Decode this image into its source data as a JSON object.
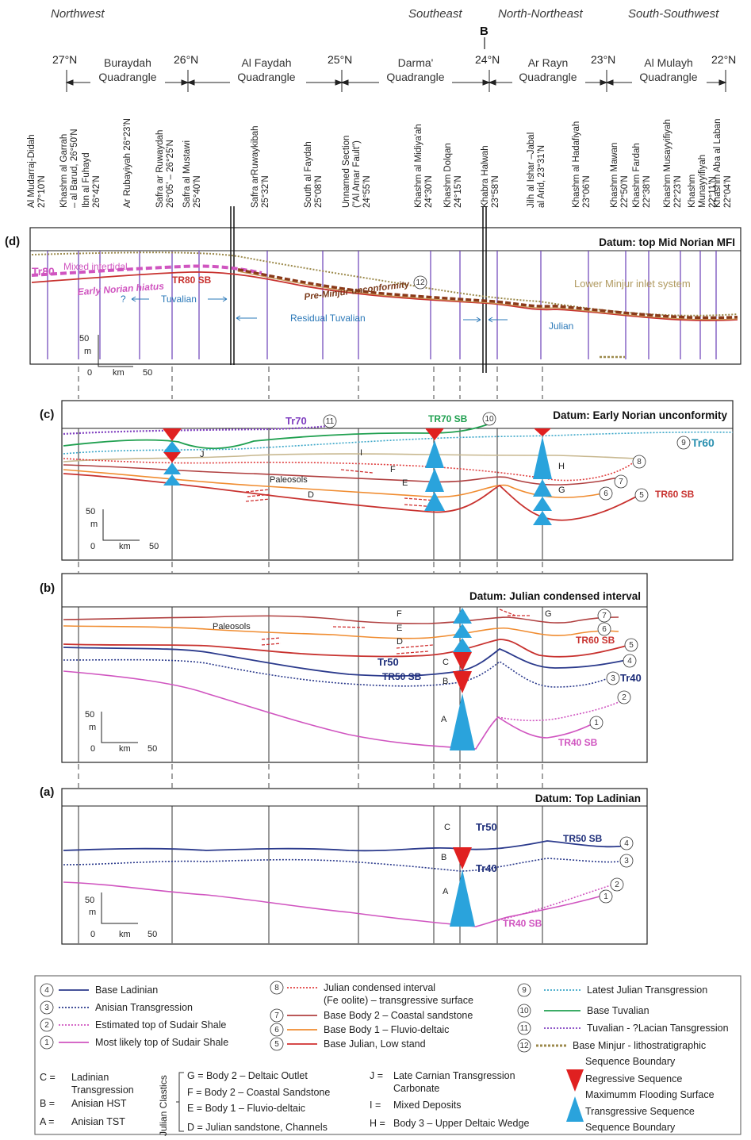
{
  "regions": [
    "Northwest",
    "Southeast",
    "North-Northeast",
    "South-Southwest"
  ],
  "section_mark": "B",
  "latitudes": [
    "27°N",
    "26°N",
    "25°N",
    "24°N",
    "23°N",
    "22°N"
  ],
  "quadrangles": [
    {
      "l1": "Buraydah",
      "l2": "Quadrangle"
    },
    {
      "l1": "Al Faydah",
      "l2": "Quadrangle"
    },
    {
      "l1": "Darma'",
      "l2": "Quadrangle"
    },
    {
      "l1": "Ar Rayn",
      "l2": "Quadrangle"
    },
    {
      "l1": "Al Mulayh",
      "l2": "Quadrangle"
    }
  ],
  "localities": [
    {
      "l1": "Al Mudarraj-Didah",
      "l2": "27°10'N"
    },
    {
      "l1": "Khashm al Garrah",
      "l2": "– al Barud, 26°50'N"
    },
    {
      "l1": "Ibn al Fuhayd",
      "l2": "26°42'N"
    },
    {
      "l1": "Ar Rubayiyah 26°23'N",
      "l2": ""
    },
    {
      "l1": "Safra ar Ruwaydah",
      "l2": "26°05' – 26°25'N"
    },
    {
      "l1": "Safra al Mustawi",
      "l2": "25°40'N"
    },
    {
      "l1": "Safra arRuwaykibah",
      "l2": "25°32'N"
    },
    {
      "l1": "South al Faydah",
      "l2": "25°08'N"
    },
    {
      "l1": "Unnamed Section",
      "l2": "(\"Al Amar Fault\")",
      "l3": "24°55'N"
    },
    {
      "l1": "Khashm al Midiya'ah",
      "l2": "24°30'N"
    },
    {
      "l1": "Khashm Dolqan",
      "l2": "24°15'N"
    },
    {
      "l1": "Khabra Halwah",
      "l2": "23°58'N"
    },
    {
      "l1": "Jilh al Ishar –Jabal",
      "l2": "al Arid, 23°31'N"
    },
    {
      "l1": "Khashm al Hadafiyah",
      "l2": "23°06'N"
    },
    {
      "l1": "Khashm Mawan",
      "l2": "22°50'N"
    },
    {
      "l1": "Khashm Fardah",
      "l2": "22°38'N"
    },
    {
      "l1": "Khashm Musayyifiyah",
      "l2": "22°23'N"
    },
    {
      "l1": "Khashm",
      "l2": "Munayyifiyah",
      "l3": "22°11'N"
    },
    {
      "l1": "Khashm Aba al Laban",
      "l2": "22°04'N"
    }
  ],
  "panel_d": {
    "label": "(d)",
    "datum": "Datum: top Mid Norian MFI",
    "tr80": "Tr80",
    "mixed": "Mixed intertidal",
    "hiatus": "Early Norian hiatus",
    "tr80sb": "TR80 SB",
    "q": "?",
    "tuvalian": "Tuvalian",
    "preminjur": "Pre-Minjur unconformity",
    "circ12": "12",
    "lower_minjur": "Lower Minjur inlet system",
    "residual": "Residual Tuvalian",
    "julian": "Julian",
    "scale_v": "50",
    "scale_m": "m",
    "scale_0": "0",
    "scale_km": "km",
    "scale_50": "50"
  },
  "panel_c": {
    "label": "(c)",
    "datum": "Datum: Early Norian unconformity",
    "tr70": "Tr70",
    "c11": "11",
    "tr70sb": "TR70 SB",
    "c10": "10",
    "c9": "9",
    "tr60": "Tr60",
    "J": "J",
    "I": "I",
    "F": "F",
    "E": "E",
    "D": "D",
    "H": "H",
    "G": "G",
    "paleosols": "Paleosols",
    "c8": "8",
    "c7": "7",
    "c6": "6",
    "c5": "5",
    "tr60sb": "TR60 SB"
  },
  "panel_b": {
    "label": "(b)",
    "datum": "Datum: Julian condensed interval",
    "F": "F",
    "E": "E",
    "D": "D",
    "G": "G",
    "C": "C",
    "B": "B",
    "A": "A",
    "paleosols": "Paleosols",
    "c7": "7",
    "c6": "6",
    "c5": "5",
    "c4": "4",
    "c3": "3",
    "c2": "2",
    "c1": "1",
    "tr60sb": "TR60 SB",
    "tr50": "Tr50",
    "tr50sb": "TR50 SB",
    "tr40": "Tr40",
    "tr40sb": "TR40 SB"
  },
  "panel_a": {
    "label": "(a)",
    "datum": "Datum: Top Ladinian",
    "C": "C",
    "B": "B",
    "A": "A",
    "tr50": "Tr50",
    "tr40": "Tr40",
    "tr50sb": "TR50 SB",
    "tr40sb": "TR40 SB",
    "c4": "4",
    "c3": "3",
    "c2": "2",
    "c1": "1"
  },
  "legend": {
    "lines": [
      {
        "n": "4",
        "label": "Base Ladinian",
        "color": "#2b3a8c",
        "dash": ""
      },
      {
        "n": "3",
        "label": "Anisian Transgression",
        "color": "#2b3a8c",
        "dash": "2,2"
      },
      {
        "n": "2",
        "label": "Estimated top of Sudair Shale",
        "color": "#d055c0",
        "dash": "2,2"
      },
      {
        "n": "1",
        "label": "Most likely top of Sudair Shale",
        "color": "#d055c0",
        "dash": ""
      },
      {
        "n": "8",
        "label": "Julian condensed interval",
        "label2": "(Fe oolite) – transgressive surface",
        "color": "#e04040",
        "dash": "2,2"
      },
      {
        "n": "7",
        "label": "Base Body 2 – Coastal sandstone",
        "color": "#b04040",
        "dash": ""
      },
      {
        "n": "6",
        "label": "Base Body 1 – Fluvio-deltaic",
        "color": "#f08c30",
        "dash": ""
      },
      {
        "n": "5",
        "label": "Base Julian, Low stand",
        "color": "#d03030",
        "dash": ""
      },
      {
        "n": "9",
        "label": "Latest Julian Transgression",
        "color": "#3aa6c8",
        "dash": "2,2"
      },
      {
        "n": "10",
        "label": "Base Tuvalian",
        "color": "#20a050",
        "dash": ""
      },
      {
        "n": "11",
        "label": "Tuvalian - ?Lacian Tansgression",
        "color": "#8040c0",
        "dash": "2,2"
      },
      {
        "n": "12",
        "label": "Base Minjur - lithostratigraphic",
        "color": "#9c8a4c",
        "dash": "3,2"
      }
    ],
    "letters_left": [
      {
        "k": "C =",
        "v1": "Ladinian",
        "v2": "Transgression"
      },
      {
        "k": "B =",
        "v1": "Anisian HST",
        "v2": ""
      },
      {
        "k": "A =",
        "v1": "Anisian TST",
        "v2": ""
      }
    ],
    "julian_title": "Julian Clastics",
    "julian_items": [
      "G = Body 2 – Deltaic Outlet",
      "F = Body 2 – Coastal Sandstone",
      "E = Body 1 – Fluvio-deltaic",
      "D = Julian sandstone, Channels"
    ],
    "right_items": [
      {
        "k": "J =",
        "v1": "Late Carnian Transgression",
        "v2": "Carbonate"
      },
      {
        "k": "I =",
        "v1": "Mixed Deposits",
        "v2": ""
      },
      {
        "k": "H =",
        "v1": "Body 3 – Upper Deltaic Wedge",
        "v2": ""
      }
    ],
    "seq": {
      "sb_top": "Sequence Boundary",
      "regressive": "Regressive Sequence",
      "mfs": "Maximumm Flooding Surface",
      "transgressive": "Transgressive Sequence",
      "sb_bottom": "Sequence Boundary"
    }
  },
  "colors": {
    "purple_well": "#6a3fb8",
    "tri_red": "#e02020",
    "tri_blue": "#2aa3dc",
    "pink": "#d055c0",
    "navy": "#1e2e7a",
    "red": "#c8322f"
  }
}
